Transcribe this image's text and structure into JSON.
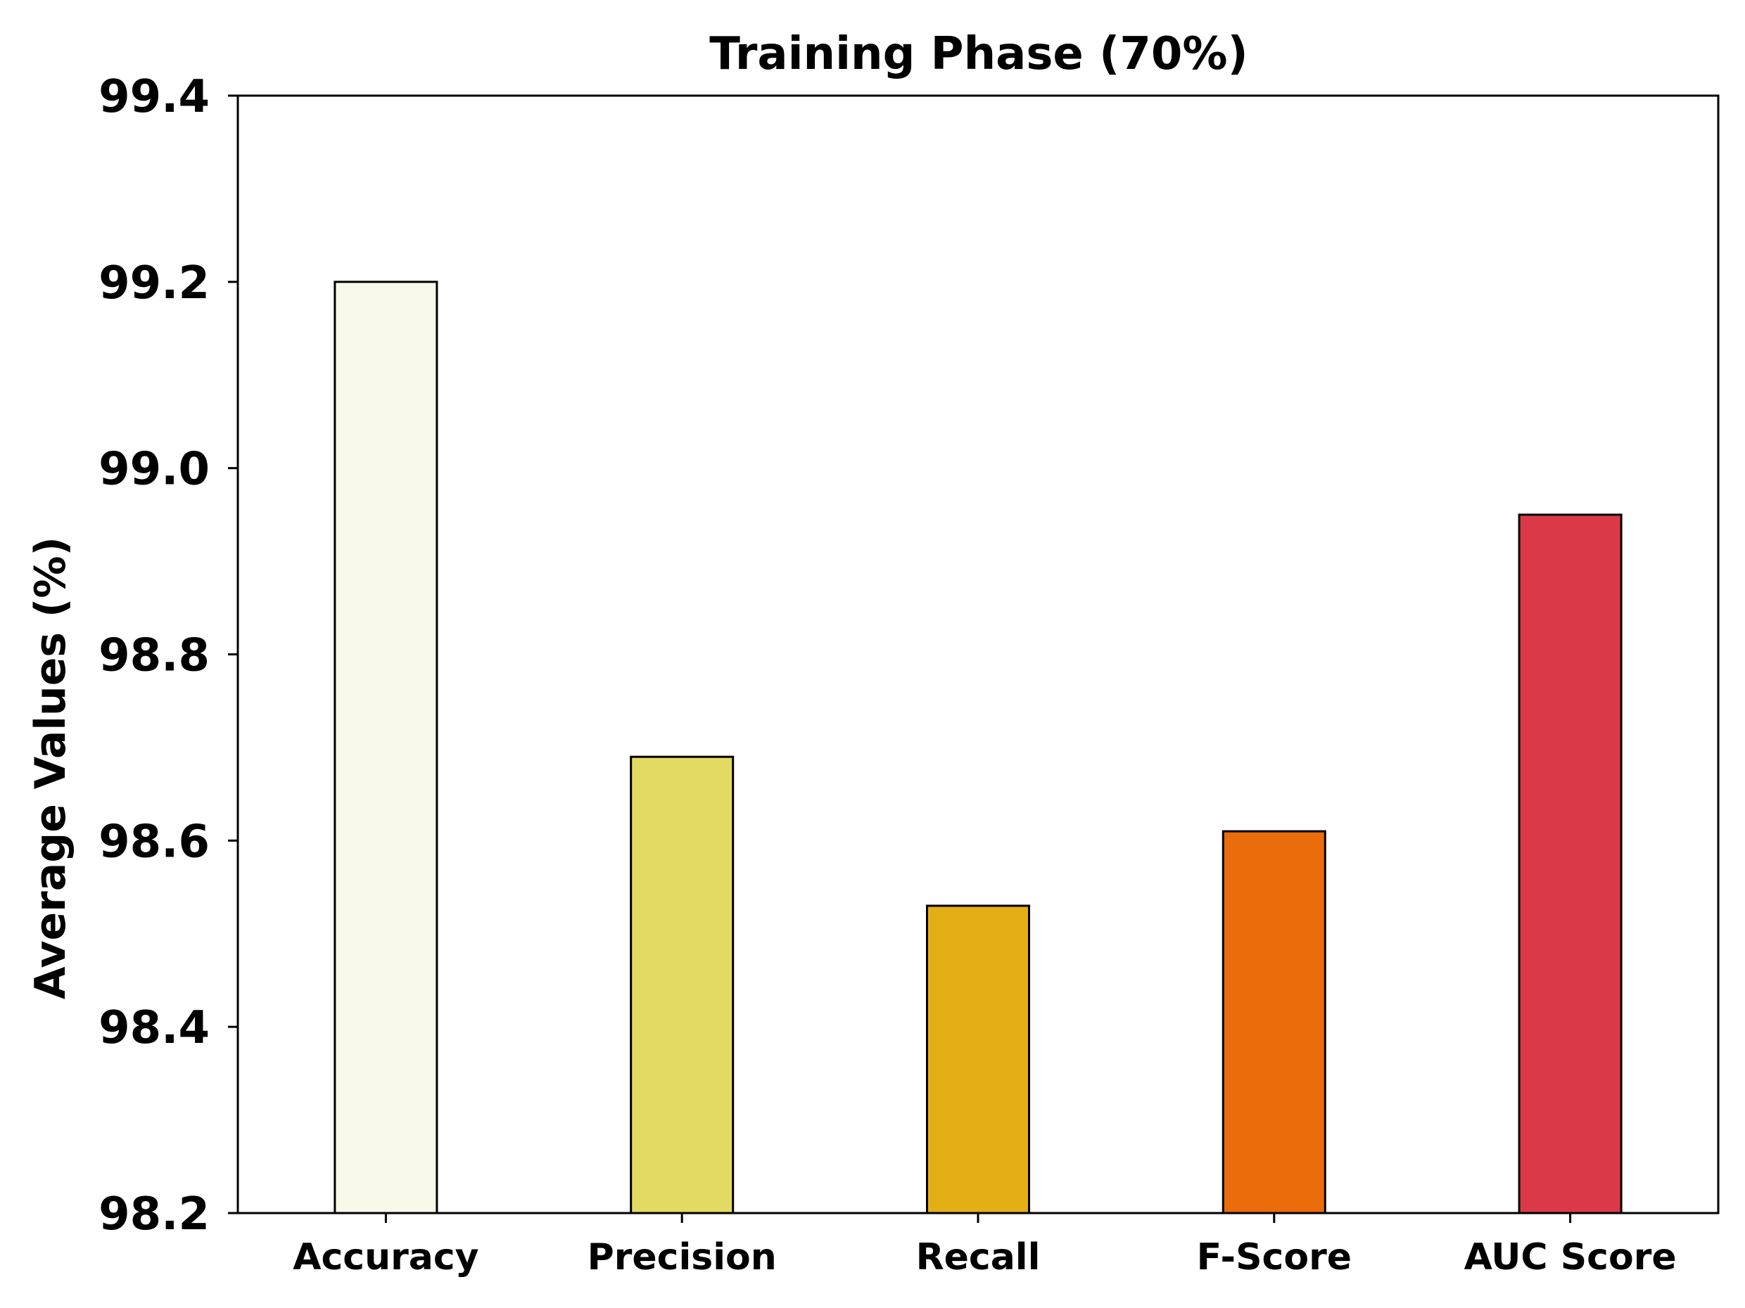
{
  "chart_data": {
    "type": "bar",
    "title": "Training Phase (70%)",
    "xlabel": "",
    "ylabel": "Average Values (%)",
    "categories": [
      "Accuracy",
      "Precision",
      "Recall",
      "F-Score",
      "AUC Score"
    ],
    "values": [
      99.2,
      98.69,
      98.53,
      98.61,
      98.95
    ],
    "colors": [
      "#f8f9e9",
      "#e3da63",
      "#e4ae17",
      "#ea6c0b",
      "#da3a48"
    ],
    "ylim": [
      98.2,
      99.4
    ],
    "yticks": [
      "98.2",
      "98.4",
      "98.6",
      "98.8",
      "99.0",
      "99.2",
      "99.4"
    ],
    "grid": false,
    "legend": "none"
  }
}
